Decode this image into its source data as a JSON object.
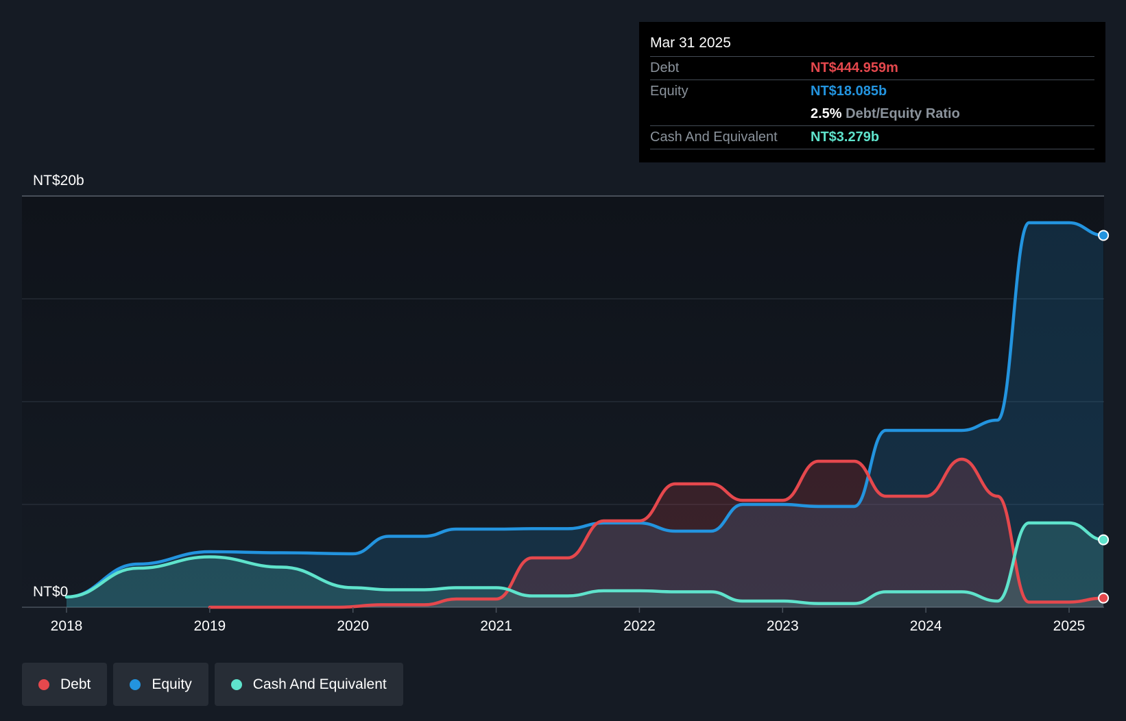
{
  "chart_data": {
    "type": "area",
    "y_axis": {
      "top_label": "NT$20b",
      "bottom_label": "NT$0",
      "ylim": [
        0,
        20
      ],
      "unit": "NT$ billions"
    },
    "x_ticks": [
      "2018",
      "2019",
      "2020",
      "2021",
      "2022",
      "2023",
      "2024",
      "2025"
    ],
    "grid": true,
    "legend_position": "bottom-left",
    "series": [
      {
        "name": "Debt",
        "color": "#e5484d",
        "x": [
          2019.0,
          2019.9,
          2020.2,
          2020.5,
          2020.72,
          2021.0,
          2021.25,
          2021.5,
          2021.75,
          2022.0,
          2022.25,
          2022.5,
          2022.72,
          2023.0,
          2023.25,
          2023.5,
          2023.72,
          2024.0,
          2024.25,
          2024.5,
          2024.72,
          2025.0,
          2025.24
        ],
        "values": [
          0.0,
          0.0,
          0.12,
          0.12,
          0.4,
          0.4,
          2.4,
          2.4,
          4.2,
          4.2,
          6.0,
          6.0,
          5.2,
          5.2,
          7.1,
          7.1,
          5.4,
          5.4,
          7.2,
          5.4,
          0.25,
          0.25,
          0.445
        ]
      },
      {
        "name": "Equity",
        "color": "#2394df",
        "x": [
          2018.0,
          2018.5,
          2019.0,
          2019.5,
          2020.0,
          2020.25,
          2020.5,
          2020.72,
          2021.0,
          2021.25,
          2021.5,
          2021.75,
          2022.0,
          2022.25,
          2022.5,
          2022.72,
          2023.0,
          2023.25,
          2023.5,
          2023.72,
          2024.0,
          2024.25,
          2024.5,
          2024.72,
          2025.0,
          2025.24
        ],
        "values": [
          0.5,
          2.1,
          2.7,
          2.65,
          2.6,
          3.45,
          3.45,
          3.8,
          3.8,
          3.82,
          3.82,
          4.1,
          4.1,
          3.7,
          3.7,
          5.0,
          5.0,
          4.9,
          4.9,
          8.6,
          8.6,
          8.6,
          9.1,
          18.7,
          18.7,
          18.085
        ]
      },
      {
        "name": "Cash And Equivalent",
        "color": "#5fe3cc",
        "x": [
          2018.0,
          2018.5,
          2019.0,
          2019.5,
          2020.0,
          2020.25,
          2020.5,
          2020.72,
          2021.0,
          2021.25,
          2021.5,
          2021.75,
          2022.0,
          2022.25,
          2022.5,
          2022.72,
          2023.0,
          2023.25,
          2023.5,
          2023.72,
          2024.0,
          2024.25,
          2024.5,
          2024.72,
          2025.0,
          2025.24
        ],
        "values": [
          0.5,
          1.9,
          2.45,
          1.95,
          0.95,
          0.85,
          0.85,
          0.95,
          0.95,
          0.55,
          0.55,
          0.8,
          0.8,
          0.75,
          0.75,
          0.3,
          0.3,
          0.18,
          0.18,
          0.75,
          0.75,
          0.75,
          0.3,
          4.1,
          4.1,
          3.279
        ]
      }
    ]
  },
  "tooltip": {
    "date": "Mar 31 2025",
    "debt_label": "Debt",
    "debt_value": "NT$444.959m",
    "equity_label": "Equity",
    "equity_value": "NT$18.085b",
    "ratio_value": "2.5%",
    "ratio_label": "Debt/Equity Ratio",
    "cash_label": "Cash And Equivalent",
    "cash_value": "NT$3.279b"
  },
  "colors": {
    "debt": "#e5484d",
    "equity": "#2394df",
    "cash": "#5fe3cc",
    "background": "#151b24"
  },
  "legend": [
    {
      "label": "Debt",
      "color": "#e5484d"
    },
    {
      "label": "Equity",
      "color": "#2394df"
    },
    {
      "label": "Cash And Equivalent",
      "color": "#5fe3cc"
    }
  ]
}
